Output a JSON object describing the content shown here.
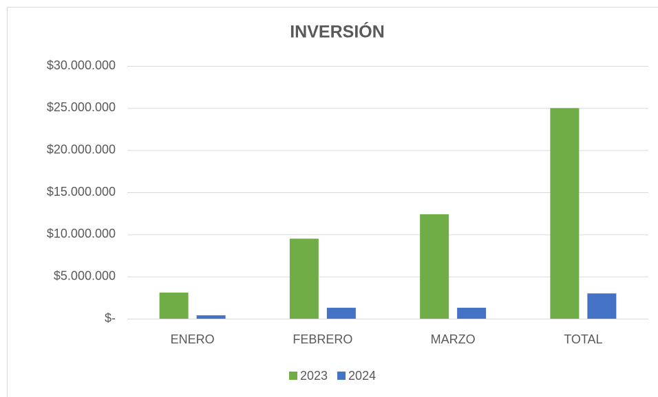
{
  "chart_data": {
    "type": "bar",
    "title": "INVERSIÓN",
    "categories": [
      "ENERO",
      "FEBRERO",
      "MARZO",
      "TOTAL"
    ],
    "series": [
      {
        "name": "2023",
        "color": "#70ad47",
        "values": [
          3100000,
          9500000,
          12400000,
          25000000
        ]
      },
      {
        "name": "2024",
        "color": "#4472c4",
        "values": [
          400000,
          1300000,
          1300000,
          3000000
        ]
      }
    ],
    "ylim": [
      0,
      30000000
    ],
    "yticks": [
      {
        "value": 0,
        "label": "$-"
      },
      {
        "value": 5000000,
        "label": "$5.000.000"
      },
      {
        "value": 10000000,
        "label": "$10.000.000"
      },
      {
        "value": 15000000,
        "label": "$15.000.000"
      },
      {
        "value": 20000000,
        "label": "$20.000.000"
      },
      {
        "value": 25000000,
        "label": "$25.000.000"
      },
      {
        "value": 30000000,
        "label": "$30.000.000"
      }
    ],
    "grid": true,
    "legend": "bottom"
  }
}
